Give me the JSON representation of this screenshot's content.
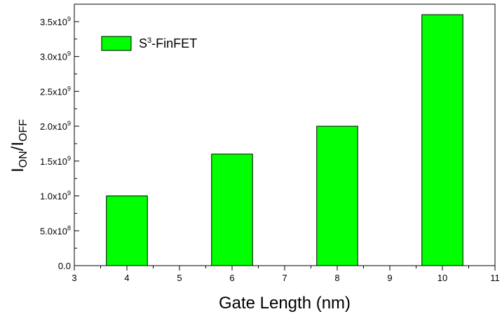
{
  "chart_data": {
    "type": "bar",
    "x": [
      4,
      6,
      8,
      10
    ],
    "values": [
      1000000000.0,
      1600000000.0,
      2000000000.0,
      3600000000.0
    ],
    "bar_width": 0.78,
    "bar_color": "#00ff00",
    "xlim": [
      3,
      11
    ],
    "ylim": [
      0,
      3750000000.0
    ],
    "x_ticks": [
      3,
      4,
      5,
      6,
      7,
      8,
      9,
      10,
      11
    ],
    "x_tick_labels": [
      "3",
      "4",
      "5",
      "6",
      "7",
      "8",
      "9",
      "10",
      "11"
    ],
    "y_ticks": [
      0,
      500000000.0,
      1000000000.0,
      1500000000.0,
      2000000000.0,
      2500000000.0,
      3000000000.0,
      3500000000.0
    ],
    "y_tick_labels": [
      {
        "mantissa": "0.0",
        "exp": ""
      },
      {
        "mantissa": "5.0x10",
        "exp": "8"
      },
      {
        "mantissa": "1.0x10",
        "exp": "9"
      },
      {
        "mantissa": "1.5x10",
        "exp": "9"
      },
      {
        "mantissa": "2.0x10",
        "exp": "9"
      },
      {
        "mantissa": "2.5x10",
        "exp": "9"
      },
      {
        "mantissa": "3.0x10",
        "exp": "9"
      },
      {
        "mantissa": "3.5x10",
        "exp": "9"
      }
    ],
    "xlabel": "Gate Length (nm)",
    "ylabel": {
      "main1": "I",
      "sub1": "ON",
      "sep": "/",
      "main2": "I",
      "sub2": "OFF"
    },
    "legend": {
      "prefix": "S",
      "sup": "3",
      "suffix": "-FinFET",
      "position": "top-left"
    },
    "grid": false
  }
}
